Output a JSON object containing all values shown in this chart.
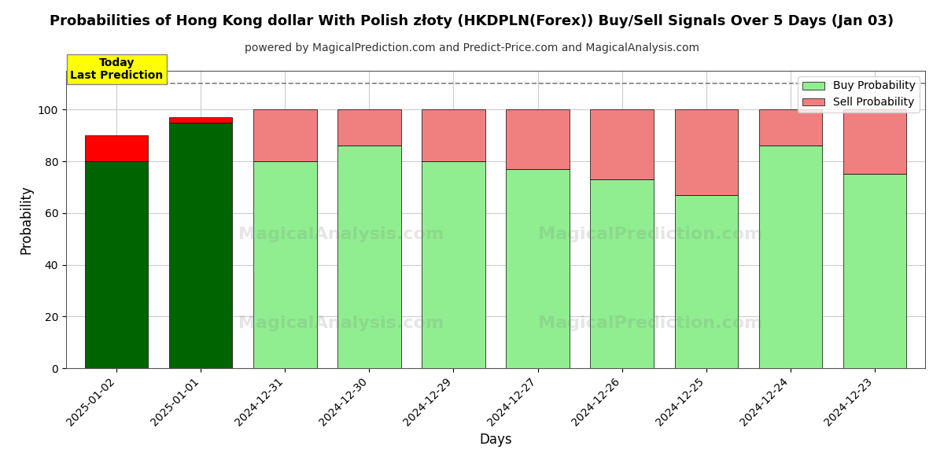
{
  "title": "Probabilities of Hong Kong dollar With Polish złoty (HKDPLN(Forex)) Buy/Sell Signals Over 5 Days (Jan 03)",
  "subtitle": "powered by MagicalPrediction.com and Predict-Price.com and MagicalAnalysis.com",
  "xlabel": "Days",
  "ylabel": "Probability",
  "dates": [
    "2025-01-02",
    "2025-01-01",
    "2024-12-31",
    "2024-12-30",
    "2024-12-29",
    "2024-12-27",
    "2024-12-26",
    "2024-12-25",
    "2024-12-24",
    "2024-12-23"
  ],
  "buy_values": [
    80,
    95,
    80,
    86,
    80,
    77,
    73,
    67,
    86,
    75
  ],
  "sell_values": [
    10,
    2,
    20,
    14,
    20,
    23,
    27,
    33,
    14,
    25
  ],
  "buy_colors_first": [
    "#006400",
    "#006400"
  ],
  "buy_color_rest": "#90EE90",
  "sell_color_first": "#FF0000",
  "sell_color_rest": "#F08080",
  "today_box_color": "#FFFF00",
  "today_text": "Today\nLast Prediction",
  "ylim": [
    0,
    115
  ],
  "yticks": [
    0,
    20,
    40,
    60,
    80,
    100
  ],
  "dashed_line_y": 110,
  "legend_buy_color": "#90EE90",
  "legend_sell_color": "#F08080",
  "watermark1": "MagicalAnalysis.com",
  "watermark2": "MagicalPrediction.com",
  "bar_width": 0.75,
  "background_color": "#ffffff",
  "grid_color": "#cccccc"
}
